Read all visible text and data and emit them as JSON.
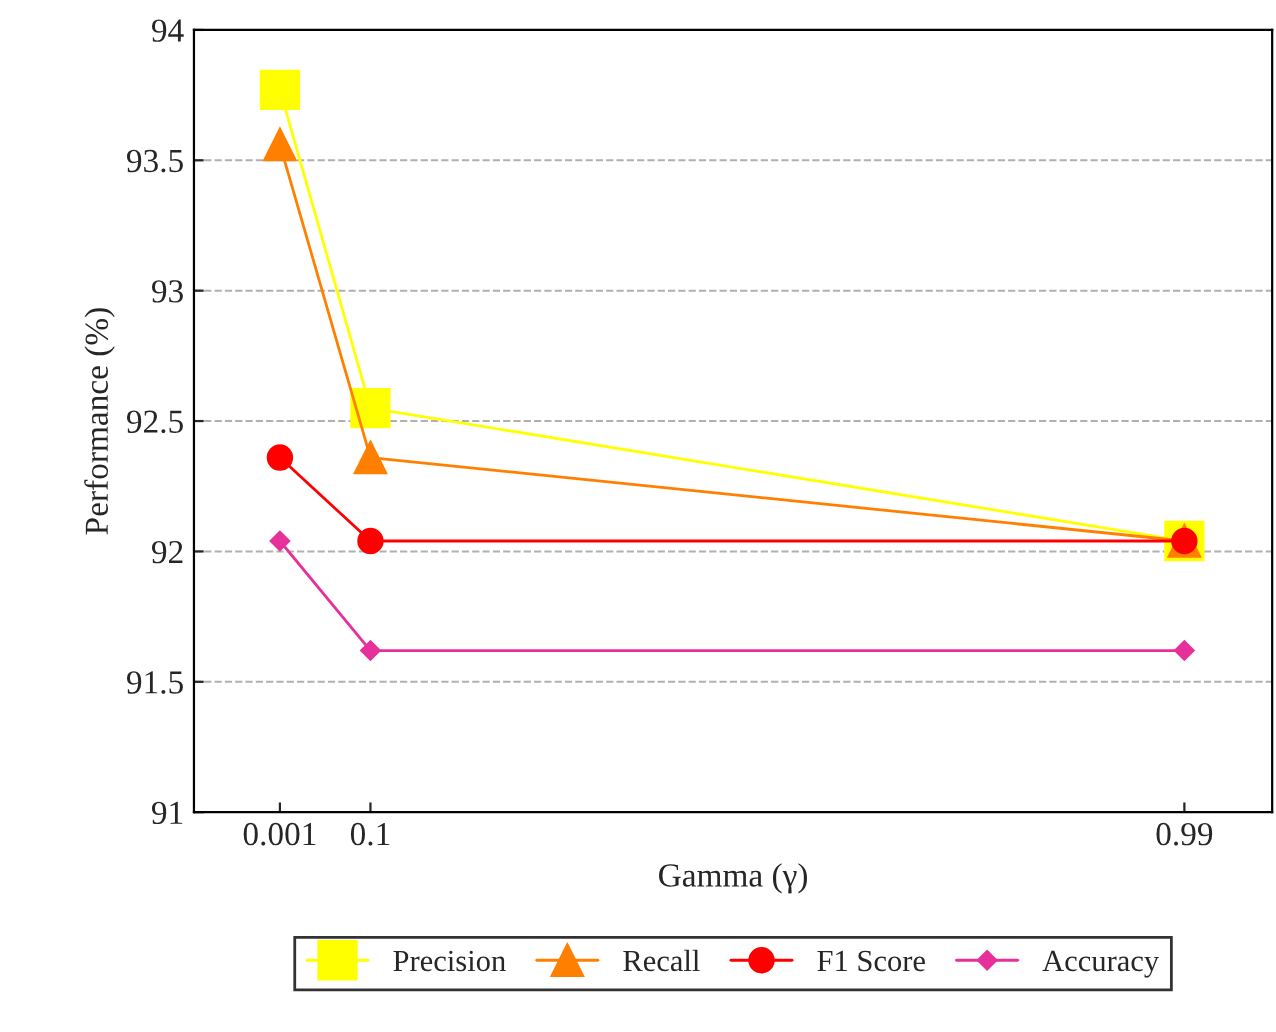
{
  "chart_data": {
    "type": "line",
    "xlabel": "Gamma (γ)",
    "ylabel": "Performance (%)",
    "x": [
      0.001,
      0.1,
      0.99
    ],
    "xlim": [
      -0.093,
      1.086
    ],
    "xticks": [
      0.001,
      0.1,
      0.99
    ],
    "ylim": [
      91,
      94
    ],
    "yticks": [
      91,
      91.5,
      92,
      92.5,
      93,
      93.5,
      94
    ],
    "grid": "y",
    "legend": "bottom",
    "line_style": "solid",
    "series": [
      {
        "name": "Precision",
        "color": "#ffff00",
        "marker": "square",
        "values": [
          93.77,
          92.55,
          92.04
        ]
      },
      {
        "name": "Recall",
        "color": "#ff8000",
        "marker": "triangle",
        "values": [
          93.56,
          92.36,
          92.04
        ]
      },
      {
        "name": "F1 Score",
        "color": "#ff0000",
        "marker": "circle",
        "values": [
          92.36,
          92.04,
          92.04
        ]
      },
      {
        "name": "Accuracy",
        "color": "#e6309a",
        "marker": "diamond",
        "values": [
          92.04,
          91.62,
          91.62
        ]
      }
    ]
  }
}
